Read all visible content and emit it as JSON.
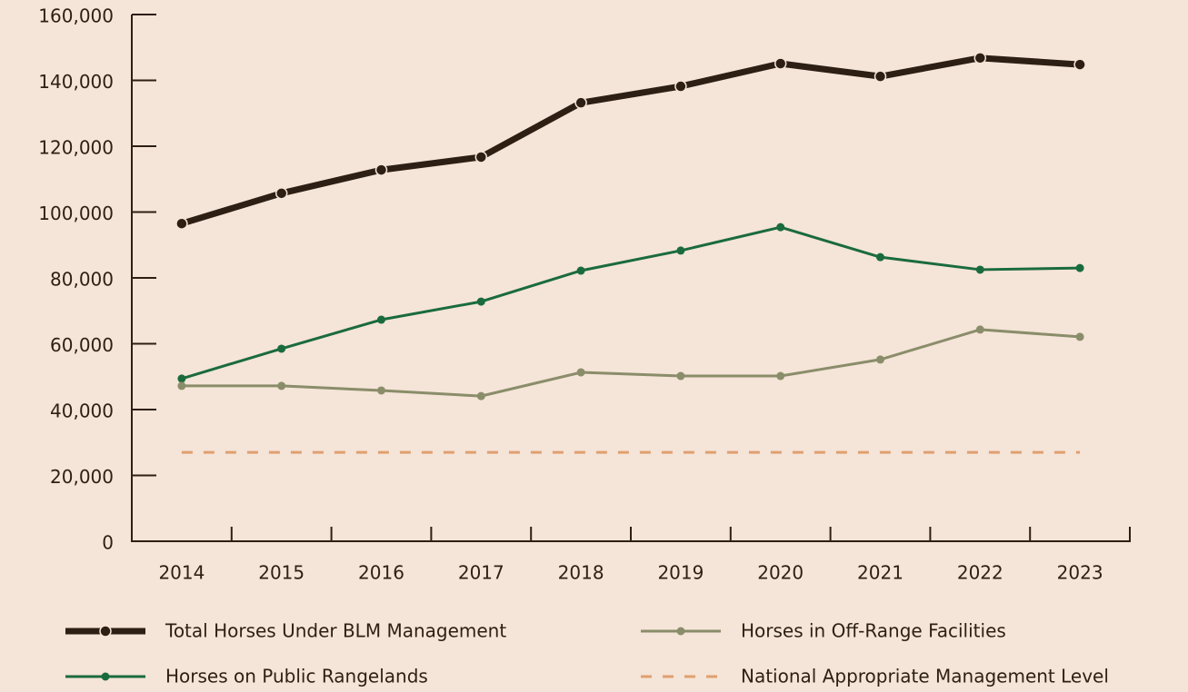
{
  "chart_data": {
    "type": "line",
    "categories": [
      "2014",
      "2015",
      "2016",
      "2017",
      "2018",
      "2019",
      "2020",
      "2021",
      "2022",
      "2023"
    ],
    "series": [
      {
        "name": "Total Horses Under BLM Management",
        "color": "#2d1f14",
        "values": [
          96500,
          105700,
          112800,
          116700,
          133200,
          138200,
          145100,
          141200,
          146800,
          144800
        ]
      },
      {
        "name": "Horses on Public Rangelands",
        "color": "#1a6b3c",
        "values": [
          49400,
          58500,
          67300,
          72800,
          82200,
          88300,
          95400,
          86300,
          82500,
          83000
        ]
      },
      {
        "name": "Horses in Off-Range Facilities",
        "color": "#8a8d6a",
        "values": [
          47200,
          47200,
          45800,
          44100,
          51300,
          50200,
          50200,
          55200,
          64300,
          62100
        ]
      },
      {
        "name": "National Appropriate Management Level",
        "color": "#e0a070",
        "line_style": "dashed",
        "values": [
          27000,
          27000,
          27000,
          27000,
          27000,
          27000,
          27000,
          27000,
          27000,
          27000
        ]
      }
    ],
    "ylim": [
      0,
      160000
    ],
    "yticks": [
      0,
      {
        "value": 20000,
        "label": "20,000"
      },
      {
        "value": 40000,
        "label": "40,000"
      },
      {
        "value": 60000,
        "label": "60,000"
      },
      {
        "value": 80000,
        "label": "80,000"
      },
      {
        "value": 100000,
        "label": "100,000"
      },
      {
        "value": 120000,
        "label": "120,000"
      },
      {
        "value": 140000,
        "label": "140,000"
      },
      {
        "value": 160000,
        "label": "160,000"
      }
    ]
  }
}
